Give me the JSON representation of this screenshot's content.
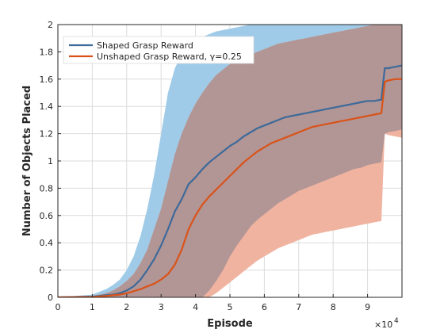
{
  "chart_data": {
    "type": "line",
    "xlabel": "Episode",
    "ylabel": "Number of Objects Placed",
    "x_multiplier_label": "×10",
    "x_multiplier_exponent": "4",
    "xlim": [
      0,
      100000
    ],
    "ylim": [
      0,
      2
    ],
    "x_ticks": [
      0,
      10000,
      20000,
      30000,
      40000,
      50000,
      60000,
      70000,
      80000,
      90000
    ],
    "x_tick_labels": [
      "0",
      "1",
      "2",
      "3",
      "4",
      "5",
      "6",
      "7",
      "8",
      "9"
    ],
    "y_ticks": [
      0,
      0.2,
      0.4,
      0.6,
      0.8,
      1,
      1.2,
      1.4,
      1.6,
      1.8,
      2
    ],
    "y_tick_labels": [
      "0",
      "0.2",
      "0.4",
      "0.6",
      "0.8",
      "1",
      "1.2",
      "1.4",
      "1.6",
      "1.8",
      "2"
    ],
    "grid": true,
    "legend_position": "top-left",
    "legend": [
      "Shaped Grasp Reward",
      "Unshaped Grasp Reward, γ=0.25"
    ],
    "colors": {
      "shaped_line": "#3d6a99",
      "shaped_band": "#9fcbe8",
      "unshaped_line": "#d95319",
      "unshaped_band": "#f0b3a0",
      "overlap_band": "#b29595",
      "grid": "#dcdcdc",
      "axis": "#262626"
    },
    "series": [
      {
        "name": "Shaped Grasp Reward",
        "x": [
          0,
          10000,
          12000,
          14000,
          16000,
          18000,
          20000,
          22000,
          24000,
          26000,
          28000,
          30000,
          32000,
          34000,
          36000,
          38000,
          40000,
          42000,
          44000,
          46000,
          48000,
          50000,
          52000,
          54000,
          56000,
          58000,
          60000,
          62000,
          64000,
          66000,
          68000,
          70000,
          72000,
          74000,
          76000,
          78000,
          80000,
          82000,
          84000,
          86000,
          88000,
          90000,
          92000,
          94000,
          95000,
          96000,
          98000,
          100000
        ],
        "values": [
          0,
          0.005,
          0.01,
          0.015,
          0.02,
          0.03,
          0.05,
          0.08,
          0.13,
          0.2,
          0.28,
          0.38,
          0.5,
          0.63,
          0.72,
          0.83,
          0.88,
          0.94,
          0.99,
          1.03,
          1.07,
          1.11,
          1.14,
          1.18,
          1.21,
          1.24,
          1.26,
          1.28,
          1.3,
          1.32,
          1.33,
          1.34,
          1.35,
          1.36,
          1.37,
          1.38,
          1.39,
          1.4,
          1.41,
          1.42,
          1.43,
          1.44,
          1.44,
          1.45,
          1.68,
          1.68,
          1.69,
          1.7
        ],
        "band_upper": [
          0,
          0.02,
          0.04,
          0.06,
          0.09,
          0.13,
          0.2,
          0.3,
          0.45,
          0.65,
          0.9,
          1.2,
          1.5,
          1.68,
          1.78,
          1.85,
          1.88,
          1.91,
          1.93,
          1.95,
          1.96,
          1.97,
          1.98,
          1.99,
          2,
          2,
          2,
          2,
          2,
          2,
          2,
          2,
          2,
          2,
          2,
          2,
          2,
          2,
          2,
          2,
          2,
          2,
          2,
          2,
          2,
          2,
          2,
          2
        ],
        "band_lower": [
          0,
          0,
          0,
          0,
          0,
          0,
          0,
          0,
          0,
          0,
          0,
          0,
          0,
          0,
          0,
          0,
          0,
          0,
          0.05,
          0.12,
          0.2,
          0.3,
          0.38,
          0.45,
          0.52,
          0.57,
          0.61,
          0.65,
          0.69,
          0.72,
          0.75,
          0.78,
          0.8,
          0.82,
          0.84,
          0.86,
          0.88,
          0.9,
          0.92,
          0.94,
          0.95,
          0.97,
          0.98,
          0.99,
          1.2,
          1.21,
          1.22,
          1.23
        ]
      },
      {
        "name": "Unshaped Grasp Reward, γ=0.25",
        "x": [
          0,
          10000,
          12000,
          14000,
          16000,
          18000,
          20000,
          22000,
          24000,
          26000,
          28000,
          30000,
          32000,
          34000,
          36000,
          38000,
          40000,
          42000,
          44000,
          46000,
          48000,
          50000,
          52000,
          54000,
          56000,
          58000,
          60000,
          62000,
          64000,
          66000,
          68000,
          70000,
          72000,
          74000,
          76000,
          78000,
          80000,
          82000,
          84000,
          86000,
          88000,
          90000,
          92000,
          94000,
          95000,
          96000,
          98000,
          100000
        ],
        "values": [
          0,
          0.003,
          0.006,
          0.01,
          0.015,
          0.02,
          0.03,
          0.045,
          0.06,
          0.08,
          0.1,
          0.13,
          0.17,
          0.24,
          0.35,
          0.5,
          0.6,
          0.68,
          0.74,
          0.79,
          0.84,
          0.89,
          0.94,
          0.99,
          1.03,
          1.07,
          1.1,
          1.13,
          1.15,
          1.17,
          1.19,
          1.21,
          1.23,
          1.25,
          1.26,
          1.27,
          1.28,
          1.29,
          1.3,
          1.31,
          1.32,
          1.33,
          1.34,
          1.35,
          1.58,
          1.59,
          1.6,
          1.6
        ],
        "band_upper": [
          0,
          0.01,
          0.02,
          0.03,
          0.05,
          0.08,
          0.12,
          0.17,
          0.25,
          0.35,
          0.5,
          0.65,
          0.85,
          1.05,
          1.2,
          1.32,
          1.42,
          1.5,
          1.57,
          1.63,
          1.67,
          1.71,
          1.74,
          1.76,
          1.78,
          1.8,
          1.82,
          1.84,
          1.86,
          1.87,
          1.88,
          1.89,
          1.9,
          1.91,
          1.92,
          1.93,
          1.94,
          1.95,
          1.96,
          1.97,
          1.98,
          1.99,
          2,
          2,
          2,
          2,
          2,
          2
        ],
        "band_lower": [
          0,
          0,
          0,
          0,
          0,
          0,
          0,
          0,
          0,
          0,
          0,
          0,
          0,
          0,
          0,
          0,
          0,
          0,
          0,
          0.03,
          0.07,
          0.11,
          0.15,
          0.19,
          0.23,
          0.27,
          0.3,
          0.33,
          0.36,
          0.38,
          0.4,
          0.42,
          0.44,
          0.46,
          0.47,
          0.48,
          0.49,
          0.5,
          0.51,
          0.52,
          0.53,
          0.54,
          0.55,
          0.56,
          1.2,
          1.19,
          1.18,
          1.17
        ]
      }
    ]
  }
}
